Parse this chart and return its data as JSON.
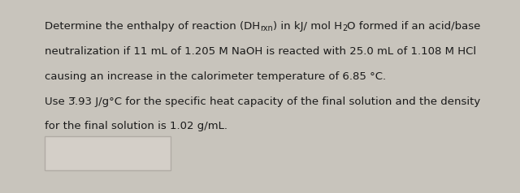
{
  "bg_color": "#c8c4bc",
  "panel_color": "#eeeae4",
  "box_color": "#d4cfc8",
  "box_border": "#b0aba4",
  "text_color": "#1a1a1a",
  "line1_part1": "Determine the enthalpy of reaction (DH",
  "line1_sub": "rxn",
  "line1_part2": ") in kJ/ mol H",
  "line1_sub2": "2",
  "line1_part3": "O formed if an acid/base",
  "line2": "neutralization if 11 mL of 1.205 M NaOH is reacted with 25.0 mL of 1.108 M HCl",
  "line3": "causing an increase in the calorimeter temperature of 6.85 °C.",
  "line4_part1": "Use ",
  "line4_strikenum": "3",
  "line4_part2": ".93 J/g°C for the specific heat capacity of the final solution and the density",
  "line5": "for the final solution is 1.02 g/mL.",
  "font_size": 9.5,
  "sub_font_size": 7.0,
  "font_family": "DejaVu Sans"
}
